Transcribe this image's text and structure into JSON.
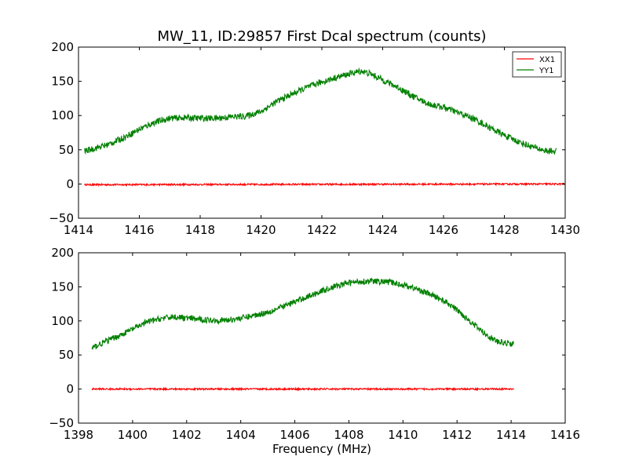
{
  "figure": {
    "title": "MW_11, ID:29857 First Dcal spectrum (counts)",
    "xlabel": "Frequency (MHz)",
    "background": "#ffffff"
  },
  "chart_data": [
    {
      "type": "line",
      "title": "MW_11, ID:29857 First Dcal spectrum (counts)",
      "xlabel": "",
      "ylabel": "",
      "xlim": [
        1414,
        1430
      ],
      "ylim": [
        -50,
        200
      ],
      "xticks": [
        1414,
        1416,
        1418,
        1420,
        1422,
        1424,
        1426,
        1428,
        1430
      ],
      "xtick_labels": [
        "1414",
        "1416",
        "1418",
        "1420",
        "1422",
        "1424",
        "1426",
        "1428",
        "1430"
      ],
      "yticks": [
        -50,
        0,
        50,
        100,
        150,
        200
      ],
      "ytick_labels": [
        "−50",
        "0",
        "50",
        "100",
        "150",
        "200"
      ],
      "legend": {
        "placement": "top-right",
        "entries": [
          "XX1",
          "YY1"
        ]
      },
      "grid": false,
      "series": [
        {
          "name": "XX1",
          "color": "#ff0000",
          "x": [
            1414.2,
            1430.0
          ],
          "y": [
            -1,
            0
          ]
        },
        {
          "name": "YY1",
          "color": "#008000",
          "x": [
            1414.2,
            1414.6,
            1415.0,
            1415.5,
            1416.0,
            1416.5,
            1417.0,
            1417.5,
            1418.0,
            1418.5,
            1419.0,
            1419.5,
            1420.0,
            1420.5,
            1421.0,
            1421.5,
            1422.0,
            1422.5,
            1423.0,
            1423.3,
            1423.6,
            1424.0,
            1424.5,
            1425.0,
            1425.5,
            1426.0,
            1426.5,
            1427.0,
            1427.5,
            1428.0,
            1428.5,
            1429.0,
            1429.4,
            1429.7
          ],
          "y": [
            48,
            53,
            58,
            68,
            80,
            90,
            96,
            97,
            96,
            96,
            98,
            99,
            106,
            120,
            131,
            141,
            149,
            156,
            162,
            165,
            161,
            152,
            141,
            128,
            117,
            112,
            104,
            95,
            83,
            71,
            61,
            53,
            48,
            48
          ]
        }
      ]
    },
    {
      "type": "line",
      "title": "",
      "xlabel": "Frequency (MHz)",
      "ylabel": "",
      "xlim": [
        1398,
        1416
      ],
      "ylim": [
        -50,
        200
      ],
      "xticks": [
        1398,
        1400,
        1402,
        1404,
        1406,
        1408,
        1410,
        1412,
        1414,
        1416
      ],
      "xtick_labels": [
        "1398",
        "1400",
        "1402",
        "1404",
        "1406",
        "1408",
        "1410",
        "1412",
        "1414",
        "1416"
      ],
      "yticks": [
        -50,
        0,
        50,
        100,
        150,
        200
      ],
      "ytick_labels": [
        "−50",
        "0",
        "50",
        "100",
        "150",
        "200"
      ],
      "grid": false,
      "series": [
        {
          "color": "#ff0000",
          "x": [
            1398.5,
            1414.1
          ],
          "y": [
            0,
            0
          ]
        },
        {
          "color": "#008000",
          "x": [
            1398.5,
            1399.0,
            1399.5,
            1400.0,
            1400.5,
            1401.0,
            1401.5,
            1402.0,
            1402.5,
            1403.0,
            1403.5,
            1404.0,
            1404.5,
            1405.0,
            1405.5,
            1406.0,
            1406.5,
            1407.0,
            1407.5,
            1408.0,
            1408.5,
            1409.0,
            1409.5,
            1410.0,
            1410.5,
            1411.0,
            1411.5,
            1412.0,
            1412.5,
            1413.0,
            1413.5,
            1414.1
          ],
          "y": [
            60,
            70,
            78,
            88,
            98,
            103,
            106,
            104,
            102,
            101,
            101,
            104,
            108,
            113,
            120,
            128,
            136,
            144,
            151,
            156,
            158,
            158,
            157,
            153,
            147,
            139,
            130,
            116,
            99,
            82,
            69,
            66
          ]
        }
      ]
    }
  ]
}
